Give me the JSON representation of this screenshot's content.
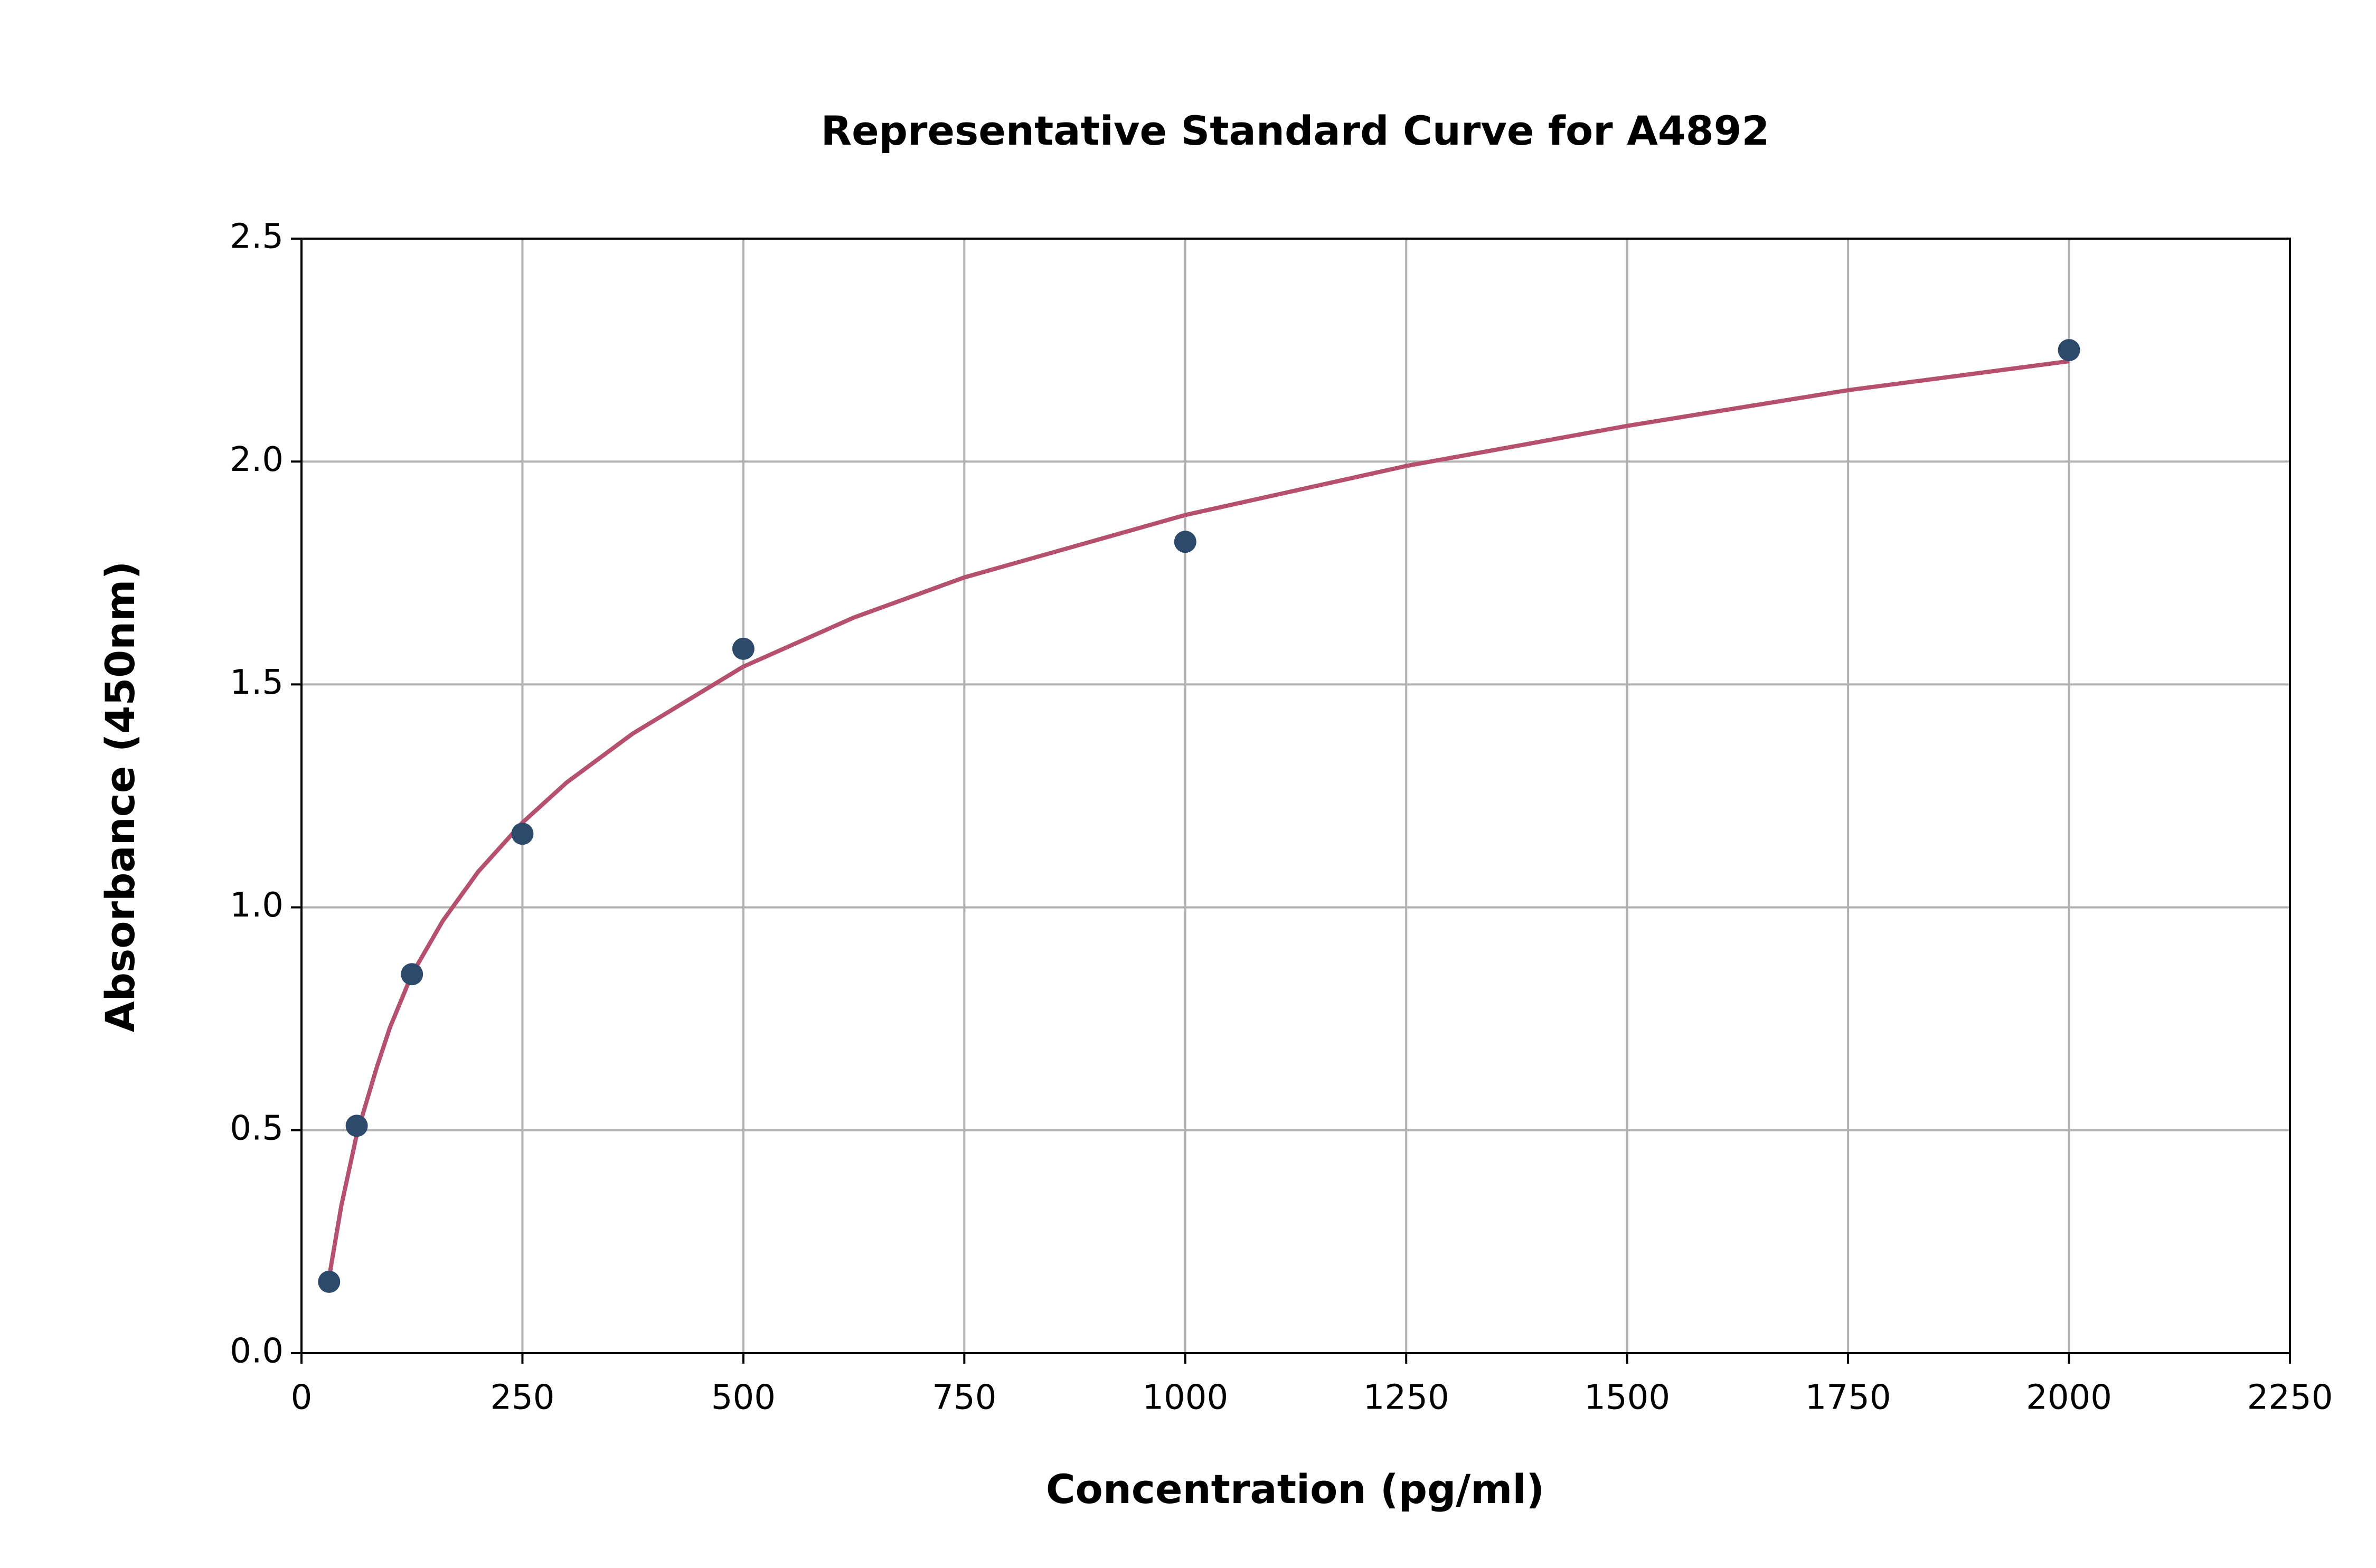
{
  "chart_data": {
    "type": "scatter",
    "title": "Representative Standard Curve for A4892",
    "xlabel": "Concentration (pg/ml)",
    "ylabel": "Absorbance (450nm)",
    "xlim": [
      0,
      2250
    ],
    "xticks": [
      0,
      250,
      500,
      750,
      1000,
      1250,
      1500,
      1750,
      2000,
      2250
    ],
    "ylim": [
      0,
      2.5
    ],
    "yticks": [
      {
        "value": 0,
        "label": "0.0"
      },
      0.5,
      {
        "value": 1,
        "label": "1.0"
      },
      1.5,
      {
        "value": 2,
        "label": "2.0"
      },
      2.5
    ],
    "grid": true,
    "series": [
      {
        "type": "scatter",
        "color": "#2e4a6b",
        "x": [
          31.25,
          62.5,
          125,
          250,
          500,
          1000,
          2000
        ],
        "values": [
          0.16,
          0.51,
          0.85,
          1.165,
          1.58,
          1.82,
          2.25
        ]
      },
      {
        "type": "line",
        "color": "#b5506f",
        "x": [
          31.25,
          45,
          62.5,
          85,
          100,
          125,
          160,
          200,
          250,
          300,
          375,
          500,
          625,
          750,
          1000,
          1250,
          1500,
          1750,
          2000
        ],
        "values": [
          0.17,
          0.33,
          0.49,
          0.64,
          0.73,
          0.85,
          0.97,
          1.08,
          1.19,
          1.28,
          1.39,
          1.54,
          1.65,
          1.74,
          1.88,
          1.99,
          2.08,
          2.16,
          2.225
        ]
      }
    ]
  }
}
